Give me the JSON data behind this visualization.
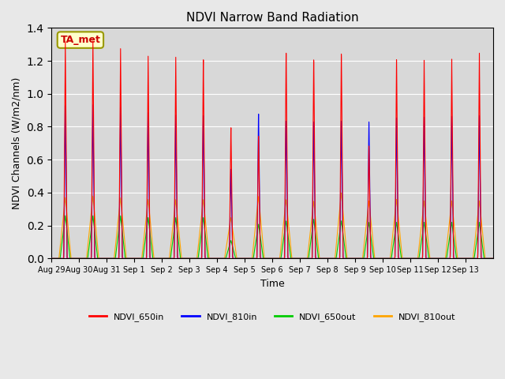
{
  "title": "NDVI Narrow Band Radiation",
  "ylabel": "NDVI Channels (W/m2/nm)",
  "xlabel": "Time",
  "annotation": "TA_met",
  "ylim": [
    0,
    1.4
  ],
  "background_color": "#e8e8e8",
  "plot_bg_color": "#d8d8d8",
  "series_colors": {
    "NDVI_650in": "#ff0000",
    "NDVI_810in": "#0000ff",
    "NDVI_650out": "#00cc00",
    "NDVI_810out": "#ffa500"
  },
  "num_days": 16,
  "tick_labels": [
    "Aug 29",
    "Aug 30",
    "Aug 31",
    "Sep 1",
    "Sep 2",
    "Sep 3",
    "Sep 4",
    "Sep 5",
    "Sep 6",
    "Sep 7",
    "Sep 8",
    "Sep 9",
    "Sep 10",
    "Sep 11",
    "Sep 12",
    "Sep 13"
  ],
  "peaks_650in": [
    1.32,
    1.33,
    1.29,
    1.25,
    1.25,
    1.24,
    0.82,
    0.77,
    1.3,
    1.25,
    1.28,
    0.7,
    1.23,
    1.22,
    1.22,
    1.25
  ],
  "peaks_810in": [
    0.93,
    0.94,
    0.93,
    0.9,
    0.89,
    0.89,
    0.56,
    0.91,
    0.87,
    0.86,
    0.86,
    0.85,
    0.87,
    0.87,
    0.87,
    0.87
  ],
  "peaks_650out": [
    0.26,
    0.26,
    0.26,
    0.25,
    0.25,
    0.25,
    0.11,
    0.21,
    0.23,
    0.24,
    0.23,
    0.22,
    0.22,
    0.22,
    0.22,
    0.22
  ],
  "peaks_810out": [
    0.37,
    0.38,
    0.37,
    0.36,
    0.36,
    0.36,
    0.25,
    0.38,
    0.36,
    0.35,
    0.4,
    0.35,
    0.36,
    0.35,
    0.35,
    0.35
  ],
  "points_per_day": 200
}
